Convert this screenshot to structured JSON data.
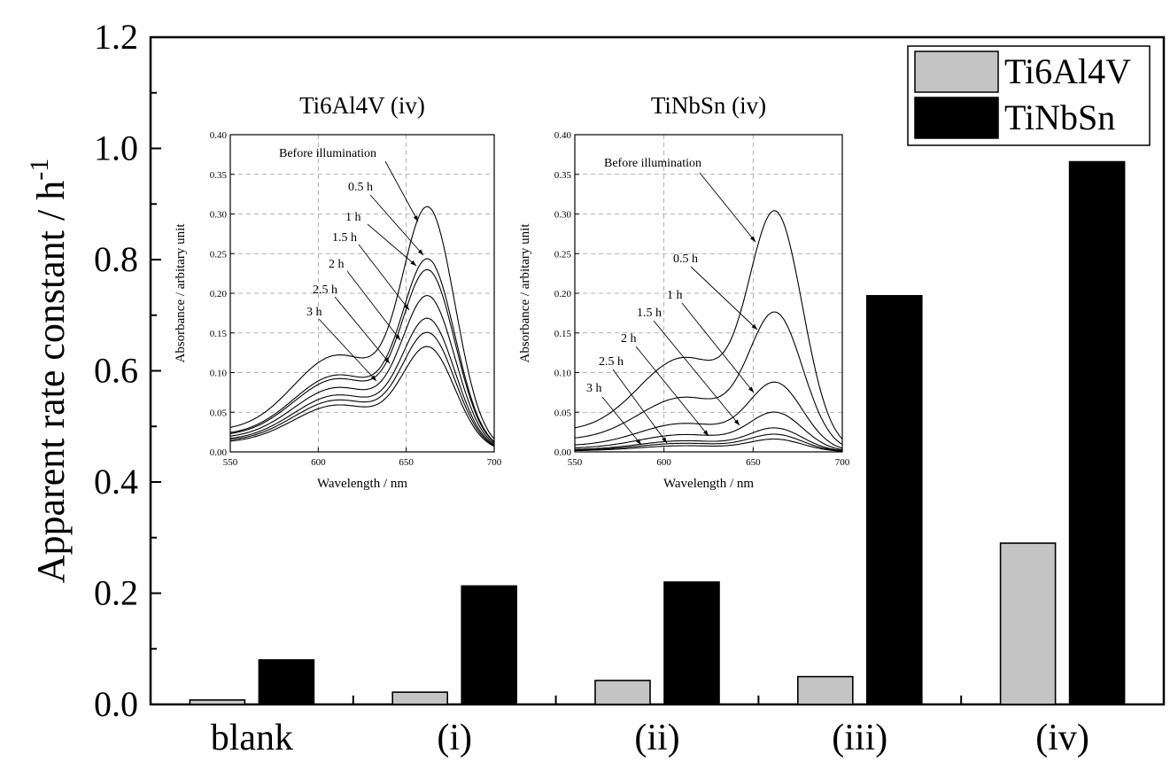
{
  "chart_data": [
    {
      "type": "bar",
      "title": "",
      "xlabel": "",
      "ylabel": "Apparent rate constant / h",
      "ylabel_sup": "-1",
      "ylim": [
        0,
        1.2
      ],
      "yticks": [
        "0.0",
        "0.2",
        "0.4",
        "0.6",
        "0.8",
        "1.0",
        "1.2"
      ],
      "categories": [
        "blank",
        "(i)",
        "(ii)",
        "(iii)",
        "(iv)"
      ],
      "series": [
        {
          "name": "Ti6Al4V",
          "color": "#c4c4c4",
          "values": [
            0.008,
            0.022,
            0.043,
            0.05,
            0.29
          ]
        },
        {
          "name": "TiNbSn",
          "color": "#000000",
          "values": [
            0.08,
            0.213,
            0.22,
            0.735,
            0.976
          ]
        }
      ],
      "legend_position": "top-right",
      "grid": false
    },
    {
      "type": "line",
      "title": "Ti6Al4V (iv)",
      "xlabel": "Wavelength / nm",
      "ylabel": "Absorbance / arbitary unit",
      "xlim": [
        550,
        700
      ],
      "ylim": [
        0,
        0.4
      ],
      "xticks": [
        "550",
        "600",
        "650",
        "700"
      ],
      "yticks": [
        "0.00",
        "0.05",
        "0.10",
        "0.15",
        "0.20",
        "0.25",
        "0.30",
        "0.35",
        "0.40"
      ],
      "grid": true,
      "series": [
        {
          "name": "Before illumination",
          "peak": 0.31,
          "shoulder": 0.156
        },
        {
          "name": "0.5 h",
          "peak": 0.244,
          "shoulder": 0.124
        },
        {
          "name": "1 h",
          "peak": 0.23,
          "shoulder": 0.118
        },
        {
          "name": "1.5 h",
          "peak": 0.197,
          "shoulder": 0.104
        },
        {
          "name": "2 h",
          "peak": 0.168,
          "shoulder": 0.092
        },
        {
          "name": "2.5 h",
          "peak": 0.15,
          "shoulder": 0.084
        },
        {
          "name": "3 h",
          "peak": 0.132,
          "shoulder": 0.076
        }
      ]
    },
    {
      "type": "line",
      "title": "TiNbSn (iv)",
      "xlabel": "Wavelength / nm",
      "ylabel": "Absorbance / arbitary unit",
      "xlim": [
        550,
        700
      ],
      "ylim": [
        0,
        0.4
      ],
      "xticks": [
        "550",
        "600",
        "650",
        "700"
      ],
      "yticks": [
        "0.00",
        "0.05",
        "0.10",
        "0.15",
        "0.20",
        "0.25",
        "0.30",
        "0.35",
        "0.40"
      ],
      "grid": true,
      "series": [
        {
          "name": "Before illumination",
          "peak": 0.305,
          "shoulder": 0.152
        },
        {
          "name": "0.5 h",
          "peak": 0.177,
          "shoulder": 0.088
        },
        {
          "name": "1 h",
          "peak": 0.088,
          "shoulder": 0.046
        },
        {
          "name": "1.5 h",
          "peak": 0.05,
          "shoulder": 0.028
        },
        {
          "name": "2 h",
          "peak": 0.03,
          "shoulder": 0.018
        },
        {
          "name": "2.5 h",
          "peak": 0.022,
          "shoulder": 0.014
        },
        {
          "name": "3 h",
          "peak": 0.016,
          "shoulder": 0.01
        }
      ]
    }
  ]
}
